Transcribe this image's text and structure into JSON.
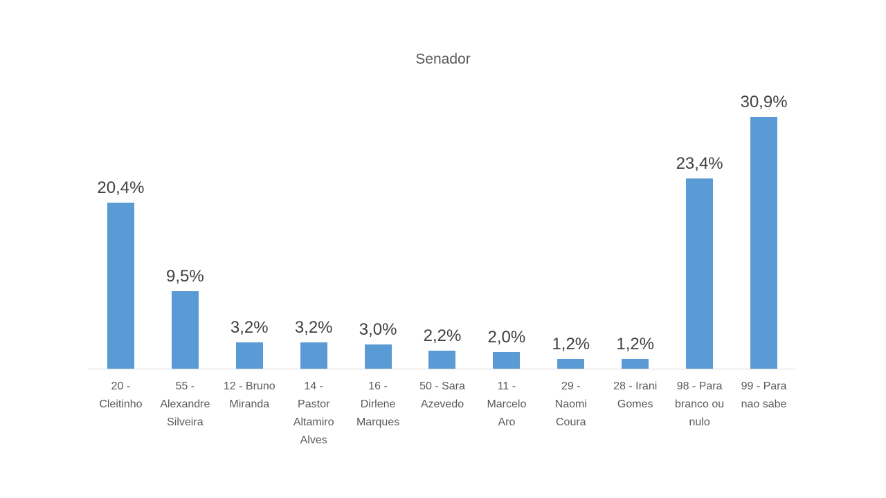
{
  "chart_data": {
    "type": "bar",
    "title": "Senador",
    "categories": [
      "20 - Cleitinho",
      "55 - Alexandre Silveira",
      "12 - Bruno Miranda",
      "14 - Pastor Altamiro Alves",
      "16 - Dirlene Marques",
      "50 - Sara Azevedo",
      "11 - Marcelo Aro",
      "29 - Naomi Coura",
      "28 - Irani Gomes",
      "98 - Para branco ou nulo",
      "99 - Para nao sabe"
    ],
    "category_lines": [
      [
        "20 -",
        "Cleitinho"
      ],
      [
        "55 -",
        "Alexandre",
        "Silveira"
      ],
      [
        "12 - Bruno",
        "Miranda"
      ],
      [
        "14 -",
        "Pastor",
        "Altamiro",
        "Alves"
      ],
      [
        "16 -",
        "Dirlene",
        "Marques"
      ],
      [
        "50 - Sara",
        "Azevedo"
      ],
      [
        "11 -",
        "Marcelo",
        "Aro"
      ],
      [
        "29 -",
        "Naomi",
        "Coura"
      ],
      [
        "28 - Irani",
        "Gomes"
      ],
      [
        "98 - Para",
        "branco ou",
        "nulo"
      ],
      [
        "99 - Para",
        "nao sabe"
      ]
    ],
    "values": [
      20.4,
      9.5,
      3.2,
      3.2,
      3.0,
      2.2,
      2.0,
      1.2,
      1.2,
      23.4,
      30.9
    ],
    "value_labels": [
      "20,4%",
      "9,5%",
      "3,2%",
      "3,2%",
      "3,0%",
      "2,2%",
      "2,0%",
      "1,2%",
      "1,2%",
      "23,4%",
      "30,9%"
    ],
    "xlabel": "",
    "ylabel": "",
    "ylim": [
      0,
      35
    ],
    "grid": false,
    "legend_position": "none",
    "bar_color": "#5B9BD5",
    "axis_line_color": "#D9D9D9",
    "title_color": "#595959",
    "data_label_color": "#404040",
    "category_label_color": "#595959",
    "background_color": "#FFFFFF"
  }
}
